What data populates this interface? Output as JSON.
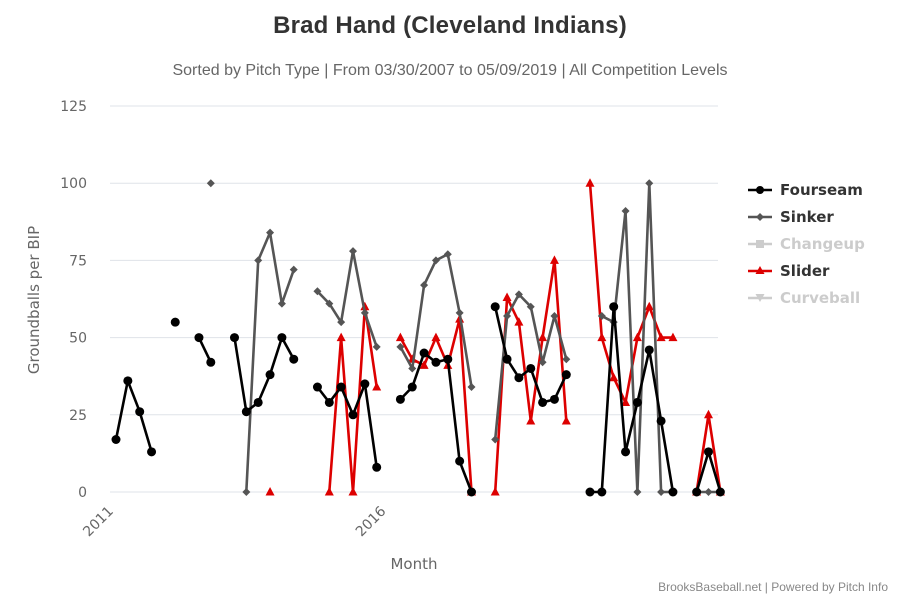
{
  "chart_data": {
    "type": "line",
    "title": "Brad Hand (Cleveland Indians)",
    "subtitle": "Sorted by Pitch Type | From 03/30/2007 to 05/09/2019 | All Competition Levels",
    "xlabel": "Month",
    "ylabel": "Groundballs per BIP",
    "ylim": [
      0,
      125
    ],
    "yticks": [
      0,
      25,
      50,
      75,
      100,
      125
    ],
    "xticks": [
      {
        "index": 0,
        "label": "2011"
      },
      {
        "index": 23,
        "label": "2016"
      }
    ],
    "x_index_range": [
      0,
      51
    ],
    "grid": true,
    "legend_position": "right",
    "series": [
      {
        "name": "Fourseam",
        "color": "#000000",
        "marker": "circle",
        "visible": true,
        "points": [
          [
            0,
            17
          ],
          [
            1,
            36
          ],
          [
            2,
            26
          ],
          [
            3,
            13
          ],
          [
            5,
            55
          ],
          [
            7,
            50
          ],
          [
            8,
            42
          ],
          [
            10,
            50
          ],
          [
            11,
            26
          ],
          [
            12,
            29
          ],
          [
            13,
            38
          ],
          [
            14,
            50
          ],
          [
            15,
            43
          ],
          [
            17,
            34
          ],
          [
            18,
            29
          ],
          [
            19,
            34
          ],
          [
            20,
            25
          ],
          [
            21,
            35
          ],
          [
            22,
            8
          ],
          [
            24,
            30
          ],
          [
            25,
            34
          ],
          [
            26,
            45
          ],
          [
            27,
            42
          ],
          [
            28,
            43
          ],
          [
            29,
            10
          ],
          [
            30,
            0
          ],
          [
            32,
            60
          ],
          [
            33,
            43
          ],
          [
            34,
            37
          ],
          [
            35,
            40
          ],
          [
            36,
            29
          ],
          [
            37,
            30
          ],
          [
            38,
            38
          ],
          [
            40,
            0
          ],
          [
            41,
            0
          ],
          [
            42,
            60
          ],
          [
            43,
            13
          ],
          [
            44,
            29
          ],
          [
            45,
            46
          ],
          [
            46,
            23
          ],
          [
            47,
            0
          ],
          [
            49,
            0
          ],
          [
            50,
            13
          ],
          [
            51,
            0
          ]
        ]
      },
      {
        "name": "Sinker",
        "color": "#555555",
        "marker": "diamond",
        "visible": true,
        "points": [
          [
            8,
            100
          ],
          [
            11,
            0
          ],
          [
            12,
            75
          ],
          [
            13,
            84
          ],
          [
            14,
            61
          ],
          [
            15,
            72
          ],
          [
            17,
            65
          ],
          [
            18,
            61
          ],
          [
            19,
            55
          ],
          [
            20,
            78
          ],
          [
            21,
            58
          ],
          [
            22,
            47
          ],
          [
            24,
            47
          ],
          [
            25,
            40
          ],
          [
            26,
            67
          ],
          [
            27,
            75
          ],
          [
            28,
            77
          ],
          [
            29,
            58
          ],
          [
            30,
            34
          ],
          [
            32,
            17
          ],
          [
            33,
            57
          ],
          [
            34,
            64
          ],
          [
            35,
            60
          ],
          [
            36,
            42
          ],
          [
            37,
            57
          ],
          [
            38,
            43
          ],
          [
            41,
            57
          ],
          [
            42,
            55
          ],
          [
            43,
            91
          ],
          [
            44,
            0
          ],
          [
            45,
            100
          ],
          [
            46,
            0
          ],
          [
            47,
            0
          ],
          [
            49,
            0
          ],
          [
            50,
            0
          ],
          [
            51,
            0
          ]
        ]
      },
      {
        "name": "Changeup",
        "color": "#cccccc",
        "marker": "square",
        "visible": false,
        "points": []
      },
      {
        "name": "Slider",
        "color": "#dd0000",
        "marker": "triangle",
        "visible": true,
        "points": [
          [
            13,
            0
          ],
          [
            18,
            0
          ],
          [
            19,
            50
          ],
          [
            20,
            0
          ],
          [
            21,
            60
          ],
          [
            22,
            34
          ],
          [
            24,
            50
          ],
          [
            25,
            43
          ],
          [
            26,
            41
          ],
          [
            27,
            50
          ],
          [
            28,
            41
          ],
          [
            29,
            56
          ],
          [
            30,
            0
          ],
          [
            32,
            0
          ],
          [
            33,
            63
          ],
          [
            34,
            55
          ],
          [
            35,
            23
          ],
          [
            36,
            50
          ],
          [
            37,
            75
          ],
          [
            38,
            23
          ],
          [
            40,
            100
          ],
          [
            41,
            50
          ],
          [
            42,
            37
          ],
          [
            43,
            29
          ],
          [
            44,
            50
          ],
          [
            45,
            60
          ],
          [
            46,
            50
          ],
          [
            47,
            50
          ],
          [
            49,
            0
          ],
          [
            50,
            25
          ],
          [
            51,
            0
          ]
        ]
      },
      {
        "name": "Curveball",
        "color": "#cccccc",
        "marker": "triangle-down",
        "visible": false,
        "points": []
      }
    ]
  },
  "credit": "BrooksBaseball.net | Powered by Pitch Info",
  "legend_active_text_color": "#333333",
  "legend_hidden_text_color": "#cccccc"
}
